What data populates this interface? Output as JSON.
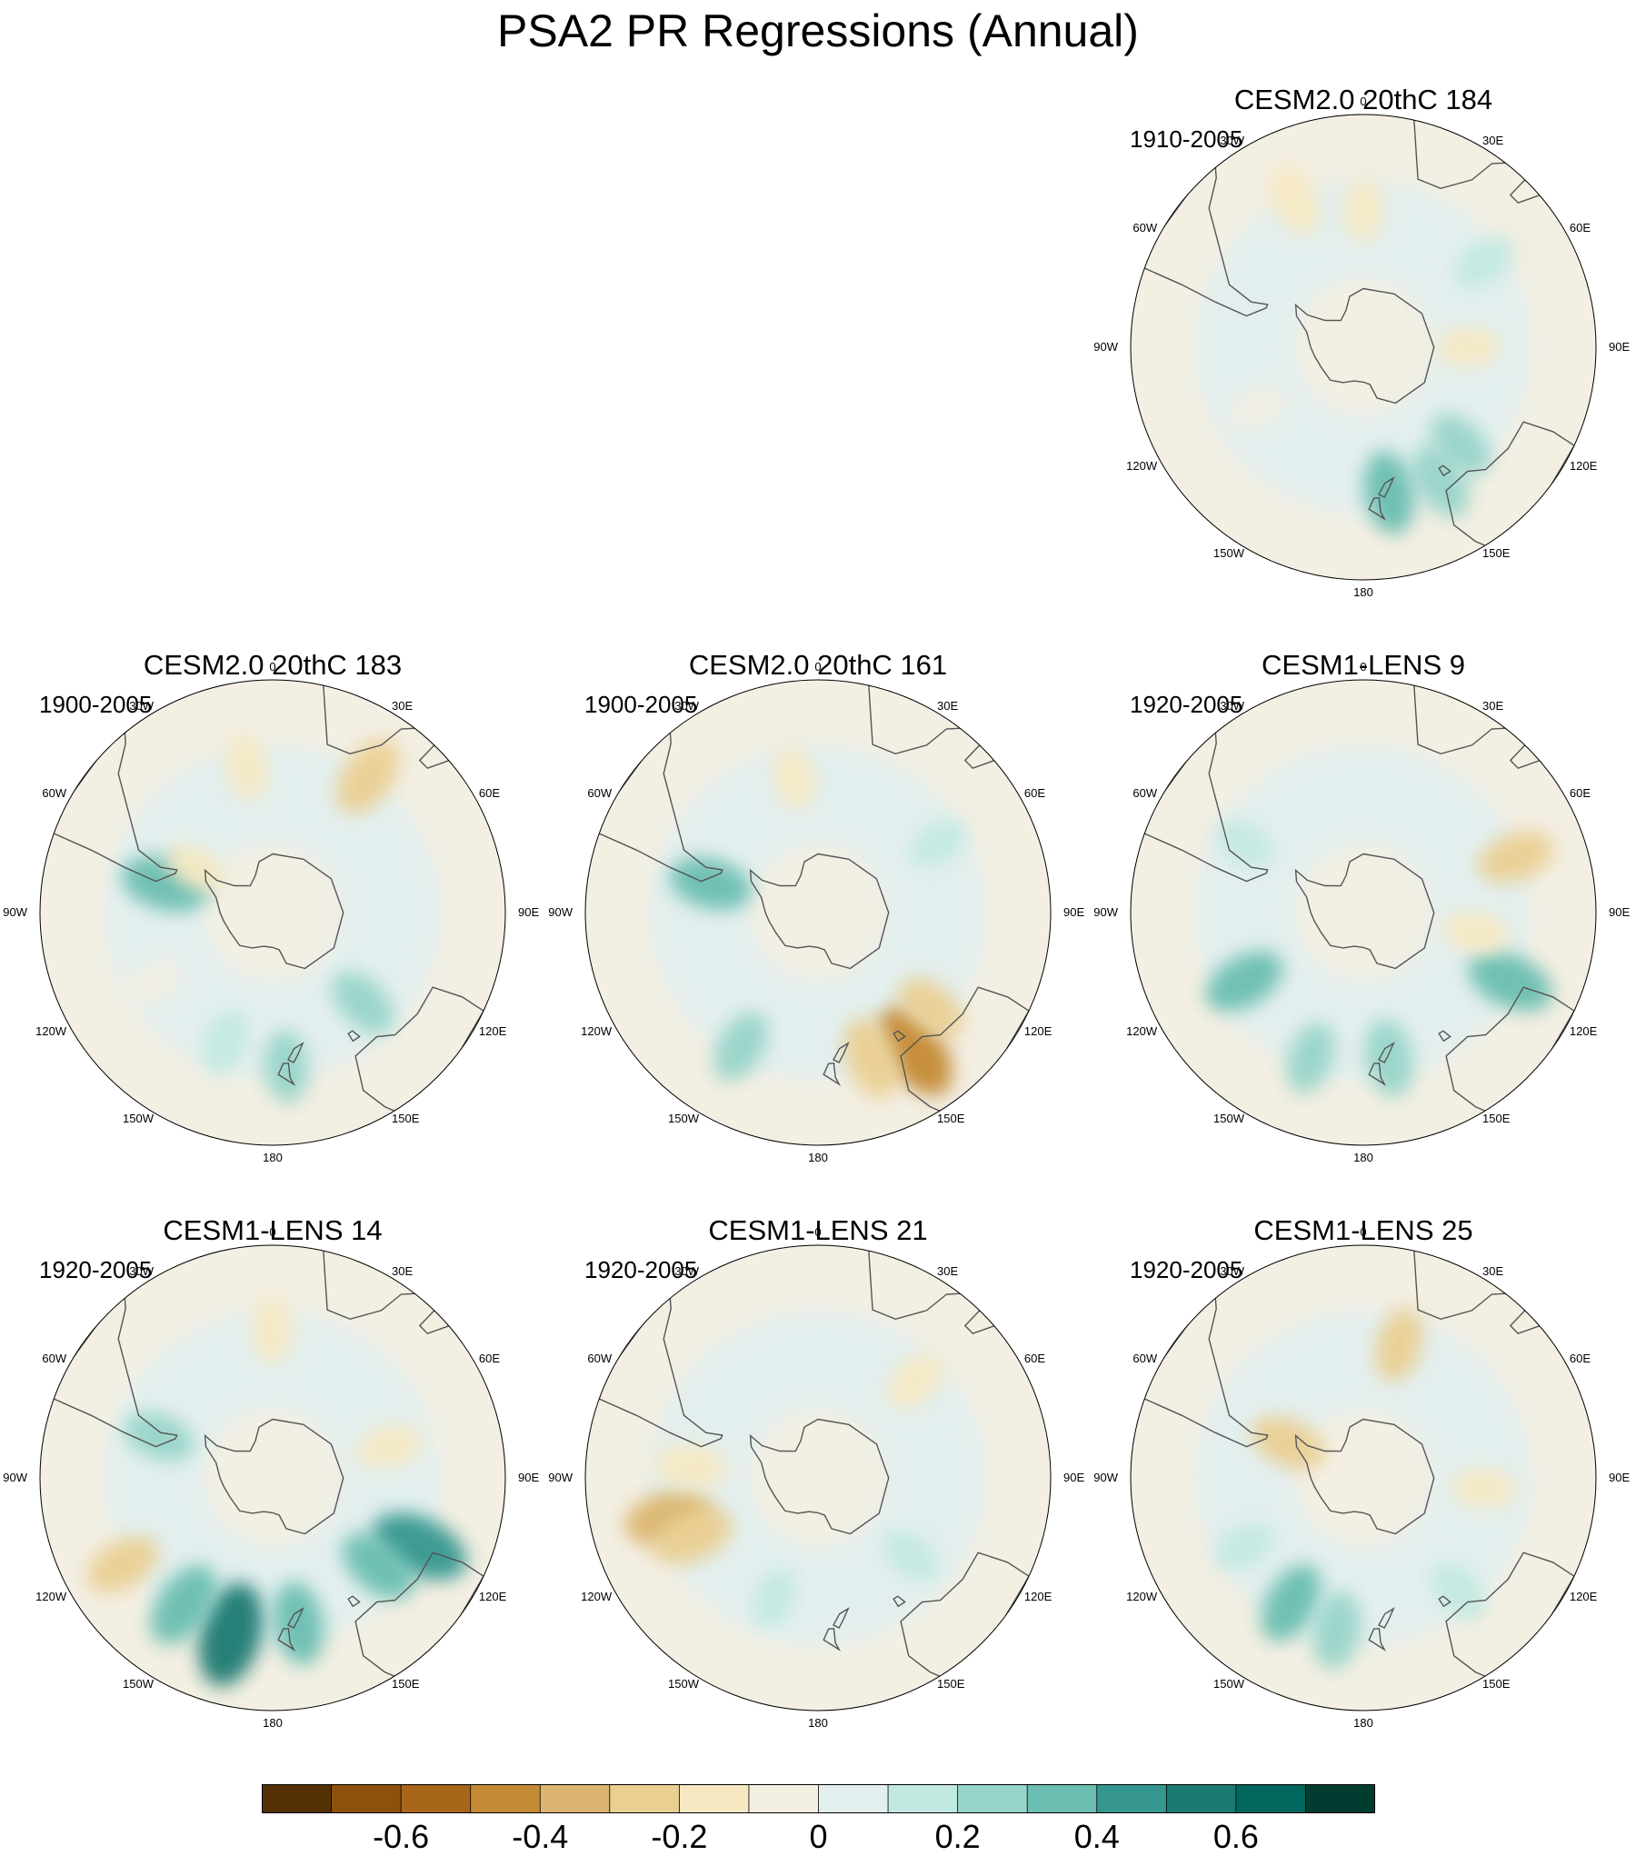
{
  "figure": {
    "title": "PSA2 PR Regressions (Annual)"
  },
  "longitude_labels": [
    "0",
    "30E",
    "60E",
    "90E",
    "120E",
    "150E",
    "180",
    "150W",
    "120W",
    "90W",
    "60W",
    "30W"
  ],
  "colors": {
    "contour_palette": [
      "#543005",
      "#8c510a",
      "#a8661a",
      "#c48a36",
      "#dcb570",
      "#eacf93",
      "#f6e8c3",
      "#f3efe3",
      "#e3efee",
      "#c2e9e1",
      "#97d4c9",
      "#6bbeb1",
      "#35978f",
      "#1b7a72",
      "#01665e",
      "#003c30"
    ],
    "land_outline": "#555555",
    "map_border": "#000000"
  },
  "chart_data": [
    {
      "type": "heatmap",
      "projection": "polar-stereographic-south",
      "title": "CESM2.0 20thC 184",
      "period": "1910-2005",
      "anomaly_regions": [
        {
          "lon": 150,
          "lat": -40,
          "value": 0.25
        },
        {
          "lon": 170,
          "lat": -42,
          "value": 0.3
        },
        {
          "lon": 135,
          "lat": -45,
          "value": 0.2
        },
        {
          "lon": 55,
          "lat": -42,
          "value": 0.15
        },
        {
          "lon": -25,
          "lat": -38,
          "value": -0.2
        },
        {
          "lon": 0,
          "lat": -45,
          "value": -0.12
        },
        {
          "lon": 90,
          "lat": -55,
          "value": -0.12
        },
        {
          "lon": -120,
          "lat": -50,
          "value": -0.1
        }
      ]
    },
    {
      "type": "heatmap",
      "projection": "polar-stereographic-south",
      "title": "CESM2.0 20thC 183",
      "period": "1900-2005",
      "anomaly_regions": [
        {
          "lon": 175,
          "lat": -40,
          "value": 0.2
        },
        {
          "lon": 135,
          "lat": -48,
          "value": 0.22
        },
        {
          "lon": -160,
          "lat": -45,
          "value": 0.15
        },
        {
          "lon": -75,
          "lat": -53,
          "value": 0.35
        },
        {
          "lon": -10,
          "lat": -42,
          "value": -0.15
        },
        {
          "lon": 35,
          "lat": -37,
          "value": -0.3
        },
        {
          "lon": -60,
          "lat": -60,
          "value": -0.12
        },
        {
          "lon": -120,
          "lat": -45,
          "value": -0.1
        }
      ]
    },
    {
      "type": "heatmap",
      "projection": "polar-stereographic-south",
      "title": "CESM2.0 20thC 161",
      "period": "1900-2005",
      "anomaly_regions": [
        {
          "lon": 145,
          "lat": -36,
          "value": -0.45
        },
        {
          "lon": 160,
          "lat": -40,
          "value": -0.3
        },
        {
          "lon": 130,
          "lat": -42,
          "value": -0.22
        },
        {
          "lon": -150,
          "lat": -40,
          "value": 0.22
        },
        {
          "lon": -75,
          "lat": -53,
          "value": 0.3
        },
        {
          "lon": -10,
          "lat": -45,
          "value": -0.12
        },
        {
          "lon": 60,
          "lat": -45,
          "value": 0.1
        }
      ]
    },
    {
      "type": "heatmap",
      "projection": "polar-stereographic-south",
      "title": "CESM1-LENS 9",
      "period": "1920-2005",
      "anomaly_regions": [
        {
          "lon": -120,
          "lat": -45,
          "value": 0.3
        },
        {
          "lon": 170,
          "lat": -42,
          "value": 0.25
        },
        {
          "lon": -160,
          "lat": -40,
          "value": 0.2
        },
        {
          "lon": 115,
          "lat": -38,
          "value": 0.35
        },
        {
          "lon": 70,
          "lat": -38,
          "value": -0.25
        },
        {
          "lon": 100,
          "lat": -52,
          "value": -0.15
        },
        {
          "lon": -60,
          "lat": -45,
          "value": 0.12
        }
      ]
    },
    {
      "type": "heatmap",
      "projection": "polar-stereographic-south",
      "title": "CESM1-LENS 14",
      "period": "1920-2005",
      "anomaly_regions": [
        {
          "lon": -165,
          "lat": -38,
          "value": 0.5
        },
        {
          "lon": -145,
          "lat": -40,
          "value": 0.35
        },
        {
          "lon": 170,
          "lat": -42,
          "value": 0.3
        },
        {
          "lon": 115,
          "lat": -38,
          "value": 0.45
        },
        {
          "lon": 130,
          "lat": -45,
          "value": 0.3
        },
        {
          "lon": -120,
          "lat": -35,
          "value": -0.25
        },
        {
          "lon": 75,
          "lat": -50,
          "value": -0.15
        },
        {
          "lon": 0,
          "lat": -42,
          "value": -0.15
        },
        {
          "lon": -70,
          "lat": -50,
          "value": 0.2
        }
      ]
    },
    {
      "type": "heatmap",
      "projection": "polar-stereographic-south",
      "title": "CESM1-LENS 21",
      "period": "1920-2005",
      "anomaly_regions": [
        {
          "lon": -105,
          "lat": -40,
          "value": -0.35
        },
        {
          "lon": -115,
          "lat": -45,
          "value": -0.3
        },
        {
          "lon": -85,
          "lat": -48,
          "value": -0.2
        },
        {
          "lon": 45,
          "lat": -45,
          "value": -0.15
        },
        {
          "lon": 130,
          "lat": -50,
          "value": 0.12
        },
        {
          "lon": -160,
          "lat": -48,
          "value": 0.1
        }
      ]
    },
    {
      "type": "heatmap",
      "projection": "polar-stereographic-south",
      "title": "CESM1-LENS 25",
      "period": "1920-2005",
      "anomaly_regions": [
        {
          "lon": -150,
          "lat": -43,
          "value": 0.3
        },
        {
          "lon": -170,
          "lat": -40,
          "value": 0.25
        },
        {
          "lon": 140,
          "lat": -42,
          "value": 0.15
        },
        {
          "lon": 15,
          "lat": -45,
          "value": -0.22
        },
        {
          "lon": -65,
          "lat": -62,
          "value": -0.25
        },
        {
          "lon": 95,
          "lat": -50,
          "value": -0.12
        },
        {
          "lon": -120,
          "lat": -45,
          "value": 0.12
        }
      ]
    },
    {
      "type": "colorbar",
      "levels": [
        -0.7,
        -0.6,
        -0.5,
        -0.4,
        -0.3,
        -0.2,
        -0.1,
        0,
        0.1,
        0.2,
        0.3,
        0.4,
        0.5,
        0.6,
        0.7
      ],
      "tick_values": [
        -0.6,
        -0.4,
        -0.2,
        0,
        0.2,
        0.4,
        0.6
      ],
      "tick_labels": [
        "-0.6",
        "-0.4",
        "-0.2",
        "0",
        "0.2",
        "0.4",
        "0.6"
      ]
    }
  ]
}
